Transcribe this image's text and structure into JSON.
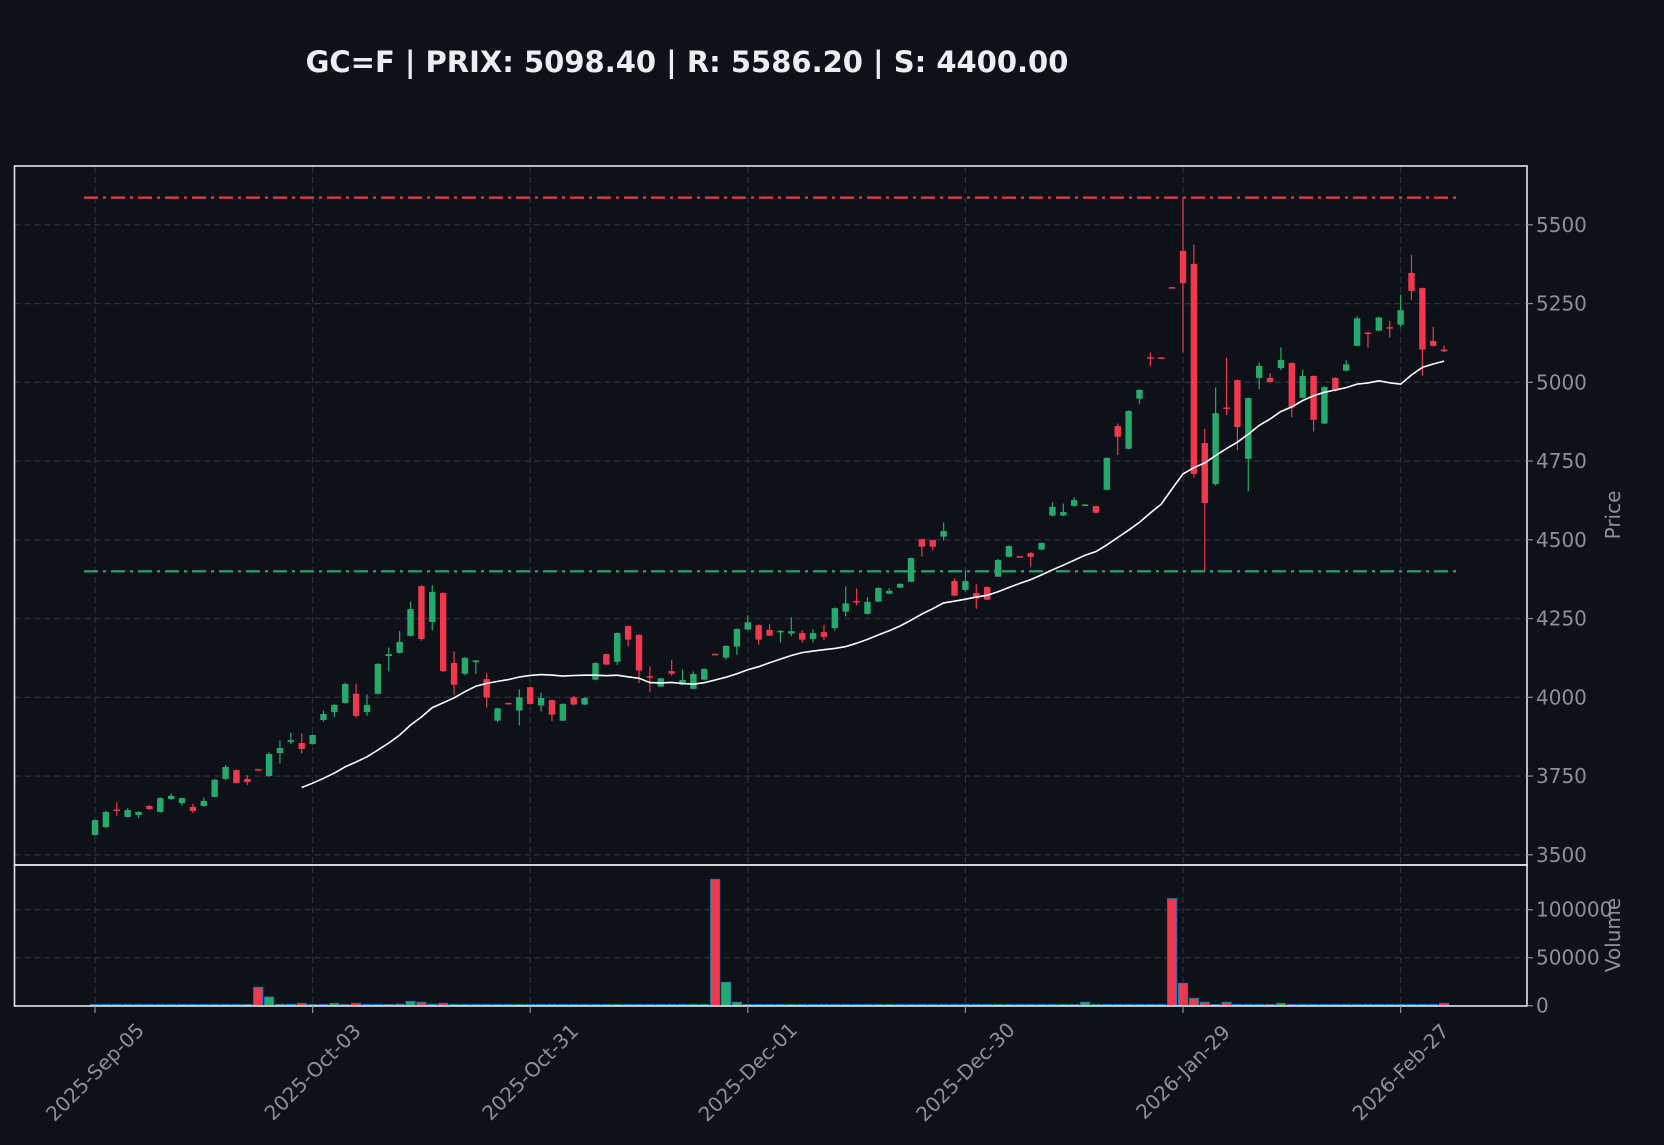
{
  "chart_data": {
    "type": "candlestick",
    "title": "GC=F | PRIX: 5098.40 | R: 5586.20 | S: 4400.00",
    "ylabel": "Price",
    "volume_label": "Volume",
    "ylim": [
      3480,
      5640
    ],
    "volume_ylim": [
      0,
      140000
    ],
    "grid": true,
    "price_ticks": [
      3500,
      3750,
      4000,
      4250,
      4500,
      4750,
      5000,
      5250,
      5500
    ],
    "volume_ticks": [
      0,
      50000,
      100000
    ],
    "x_ticks": [
      {
        "index": 0,
        "label": "2025-Sep-05"
      },
      {
        "index": 20,
        "label": "2025-Oct-03"
      },
      {
        "index": 40,
        "label": "2025-Oct-31"
      },
      {
        "index": 60,
        "label": "2025-Dec-01"
      },
      {
        "index": 80,
        "label": "2025-Dec-30"
      },
      {
        "index": 100,
        "label": "2026-Jan-29"
      },
      {
        "index": 120,
        "label": "2026-Feb-27"
      }
    ],
    "resistance": 5586.2,
    "support": 4400.0,
    "ma_period": 20,
    "colors": {
      "up": "#26a96c",
      "down": "#f0384f",
      "resistance": "#f0384f",
      "support": "#26a96c",
      "ma": "#ffffff",
      "volume_edge": "#1f77b4",
      "background": "#0e1118",
      "frame": "#e6e6e6"
    },
    "ohlc": [
      [
        3563,
        3612,
        3560,
        3610
      ],
      [
        3588,
        3640,
        3585,
        3636
      ],
      [
        3644,
        3667,
        3624,
        3642
      ],
      [
        3620,
        3648,
        3618,
        3642
      ],
      [
        3626,
        3638,
        3616,
        3636
      ],
      [
        3655,
        3658,
        3642,
        3645
      ],
      [
        3636,
        3683,
        3634,
        3680
      ],
      [
        3677,
        3695,
        3675,
        3687
      ],
      [
        3664,
        3682,
        3656,
        3680
      ],
      [
        3652,
        3662,
        3633,
        3639
      ],
      [
        3655,
        3682,
        3653,
        3671
      ],
      [
        3684,
        3741,
        3682,
        3738
      ],
      [
        3741,
        3785,
        3737,
        3779
      ],
      [
        3769,
        3771,
        3726,
        3728
      ],
      [
        3741,
        3753,
        3722,
        3731
      ],
      [
        3772,
        3773,
        3770,
        3771
      ],
      [
        3750,
        3825,
        3748,
        3820
      ],
      [
        3823,
        3863,
        3790,
        3839
      ],
      [
        3858,
        3888,
        3851,
        3864
      ],
      [
        3855,
        3886,
        3822,
        3836
      ],
      [
        3852,
        3882,
        3850,
        3880
      ],
      [
        3928,
        3958,
        3923,
        3947
      ],
      [
        3953,
        3978,
        3937,
        3976
      ],
      [
        3982,
        4047,
        3980,
        4042
      ],
      [
        4011,
        4043,
        3936,
        3941
      ],
      [
        3953,
        4009,
        3942,
        3976
      ],
      [
        4011,
        4108,
        4009,
        4106
      ],
      [
        4131,
        4158,
        4082,
        4137
      ],
      [
        4141,
        4210,
        4139,
        4176
      ],
      [
        4195,
        4304,
        4193,
        4280
      ],
      [
        4353,
        4356,
        4180,
        4185
      ],
      [
        4239,
        4356,
        4212,
        4334
      ],
      [
        4331,
        4334,
        4080,
        4083
      ],
      [
        4109,
        4146,
        4007,
        4040
      ],
      [
        4075,
        4128,
        4070,
        4125
      ],
      [
        4113,
        4118,
        4074,
        4117
      ],
      [
        4058,
        4076,
        3967,
        3999
      ],
      [
        3926,
        3967,
        3921,
        3965
      ],
      [
        3982,
        3983,
        3979,
        3980
      ],
      [
        3958,
        4025,
        3911,
        4000
      ],
      [
        4032,
        4034,
        3977,
        3979
      ],
      [
        3974,
        4015,
        3955,
        3998
      ],
      [
        3991,
        3993,
        3924,
        3945
      ],
      [
        3926,
        3981,
        3924,
        3979
      ],
      [
        4000,
        4005,
        3975,
        3977
      ],
      [
        3977,
        4000,
        3975,
        3998
      ],
      [
        4056,
        4111,
        4054,
        4109
      ],
      [
        4137,
        4139,
        4102,
        4104
      ],
      [
        4113,
        4206,
        4103,
        4204
      ],
      [
        4226,
        4228,
        4161,
        4183
      ],
      [
        4198,
        4200,
        4045,
        4085
      ],
      [
        4067,
        4098,
        4017,
        4065
      ],
      [
        4034,
        4062,
        4032,
        4060
      ],
      [
        4083,
        4119,
        4069,
        4075
      ],
      [
        4040,
        4088,
        4038,
        4055
      ],
      [
        4027,
        4082,
        4025,
        4074
      ],
      [
        4056,
        4092,
        4054,
        4090
      ],
      [
        4138,
        4139,
        4135,
        4136
      ],
      [
        4126,
        4165,
        4120,
        4163
      ],
      [
        4161,
        4219,
        4135,
        4217
      ],
      [
        4215,
        4260,
        4213,
        4238
      ],
      [
        4229,
        4231,
        4167,
        4183
      ],
      [
        4214,
        4232,
        4194,
        4196
      ],
      [
        4208,
        4213,
        4174,
        4211
      ],
      [
        4202,
        4254,
        4194,
        4210
      ],
      [
        4204,
        4213,
        4173,
        4183
      ],
      [
        4185,
        4216,
        4174,
        4204
      ],
      [
        4207,
        4230,
        4181,
        4192
      ],
      [
        4220,
        4285,
        4212,
        4283
      ],
      [
        4272,
        4352,
        4257,
        4298
      ],
      [
        4306,
        4345,
        4292,
        4304
      ],
      [
        4265,
        4318,
        4263,
        4303
      ],
      [
        4304,
        4349,
        4302,
        4347
      ],
      [
        4329,
        4346,
        4327,
        4338
      ],
      [
        4348,
        4362,
        4346,
        4360
      ],
      [
        4367,
        4444,
        4365,
        4442
      ],
      [
        4502,
        4504,
        4446,
        4478
      ],
      [
        4499,
        4501,
        4467,
        4478
      ],
      [
        4510,
        4555,
        4498,
        4528
      ],
      [
        4369,
        4377,
        4321,
        4323
      ],
      [
        4341,
        4404,
        4335,
        4369
      ],
      [
        4331,
        4359,
        4281,
        4314
      ],
      [
        4350,
        4352,
        4308,
        4310
      ],
      [
        4383,
        4440,
        4382,
        4436
      ],
      [
        4446,
        4482,
        4444,
        4480
      ],
      [
        4448,
        4449,
        4446,
        4447
      ],
      [
        4458,
        4461,
        4415,
        4446
      ],
      [
        4469,
        4492,
        4467,
        4490
      ],
      [
        4577,
        4619,
        4574,
        4604
      ],
      [
        4577,
        4615,
        4575,
        4588
      ],
      [
        4608,
        4634,
        4605,
        4626
      ],
      [
        4610,
        4613,
        4609,
        4612
      ],
      [
        4607,
        4609,
        4584,
        4586
      ],
      [
        4659,
        4762,
        4657,
        4760
      ],
      [
        4861,
        4869,
        4769,
        4827
      ],
      [
        4789,
        4911,
        4787,
        4909
      ],
      [
        4948,
        4978,
        4932,
        4976
      ],
      [
        5080,
        5095,
        5051,
        5078
      ],
      [
        5079,
        5080,
        5077,
        5078
      ],
      [
        5302,
        5303,
        5299,
        5300
      ],
      [
        5417,
        5586.2,
        5095,
        5315
      ],
      [
        5376,
        5437,
        4697,
        4709
      ],
      [
        4807,
        4853,
        4400,
        4617
      ],
      [
        4677,
        4984,
        4672,
        4902
      ],
      [
        4920,
        5078,
        4896,
        4918
      ],
      [
        5007,
        5009,
        4785,
        4858
      ],
      [
        4757,
        4952,
        4654,
        4950
      ],
      [
        5014,
        5063,
        4978,
        5052
      ],
      [
        5014,
        5029,
        4999,
        5001
      ],
      [
        5045,
        5111,
        5039,
        5071
      ],
      [
        5061,
        5063,
        4889,
        4920
      ],
      [
        4951,
        5040,
        4949,
        5020
      ],
      [
        5020,
        5022,
        4844,
        4881
      ],
      [
        4869,
        4987,
        4867,
        4985
      ],
      [
        5014,
        5016,
        4971,
        4973
      ],
      [
        5037,
        5070,
        5035,
        5057
      ],
      [
        5116,
        5210,
        5114,
        5203
      ],
      [
        5158,
        5160,
        5110,
        5155
      ],
      [
        5164,
        5208,
        5162,
        5206
      ],
      [
        5175,
        5195,
        5142,
        5174
      ],
      [
        5183,
        5278,
        5176,
        5229
      ],
      [
        5347,
        5404,
        5262,
        5290
      ],
      [
        5299,
        5301,
        5021,
        5104
      ],
      [
        5131,
        5176,
        5114,
        5116
      ],
      [
        5104,
        5117,
        5096,
        5098.4
      ]
    ],
    "volume": [
      500,
      500,
      200,
      300,
      200,
      500,
      200,
      200,
      200,
      200,
      200,
      300,
      500,
      800,
      1200,
      19100,
      9000,
      1400,
      1400,
      2400,
      300,
      200,
      2400,
      1000,
      2400,
      1000,
      1000,
      1000,
      1500,
      4500,
      3500,
      1500,
      2400,
      500,
      300,
      300,
      300,
      300,
      300,
      300,
      300,
      300,
      300,
      300,
      300,
      300,
      300,
      300,
      300,
      300,
      300,
      1000,
      300,
      300,
      300,
      300,
      300,
      131600,
      24300,
      3500,
      300,
      500,
      300,
      300,
      300,
      300,
      300,
      300,
      300,
      1200,
      300,
      1200,
      1200,
      300,
      300,
      300,
      300,
      300,
      300,
      300,
      300,
      300,
      300,
      300,
      1200,
      300,
      300,
      300,
      300,
      1000,
      300,
      3500,
      300,
      300,
      1200,
      300,
      300,
      300,
      300,
      111500,
      23300,
      7600,
      3500,
      300,
      3500,
      300,
      300,
      300,
      300,
      2400,
      300,
      300,
      300,
      1000,
      1000,
      300,
      300,
      300,
      1000,
      1000,
      500,
      1000,
      1000,
      1000,
      2400
    ]
  }
}
